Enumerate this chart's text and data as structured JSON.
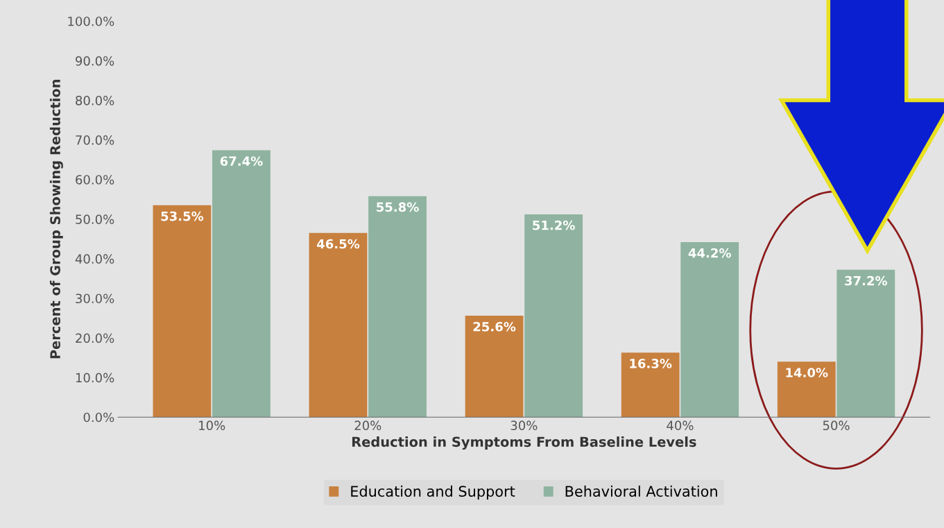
{
  "chart_data": {
    "type": "bar",
    "xlabel": "Reduction in Symptoms From Baseline Levels",
    "ylabel": "Percent of Group Showing Reduction",
    "categories": [
      "10%",
      "20%",
      "30%",
      "40%",
      "50%"
    ],
    "series": [
      {
        "name": "Education and Support",
        "color": "#c8803e",
        "values": [
          53.5,
          46.5,
          25.6,
          16.3,
          14.0
        ],
        "value_labels": [
          "53.5%",
          "46.5%",
          "25.6%",
          "16.3%",
          "14.0%"
        ]
      },
      {
        "name": "Behavioral Activation",
        "color": "#8fb3a0",
        "values": [
          67.4,
          55.8,
          51.2,
          44.2,
          37.2
        ],
        "value_labels": [
          "67.4%",
          "55.8%",
          "51.2%",
          "44.2%",
          "37.2%"
        ]
      }
    ],
    "ylim": [
      0,
      100
    ],
    "yticks": [
      {
        "value": 0,
        "label": "0.0%"
      },
      {
        "value": 10,
        "label": "10.0%"
      },
      {
        "value": 20,
        "label": "20.0%"
      },
      {
        "value": 30,
        "label": "30.0%"
      },
      {
        "value": 40,
        "label": "40.0%"
      },
      {
        "value": 50,
        "label": "50.0%"
      },
      {
        "value": 60,
        "label": "60.0%"
      },
      {
        "value": 70,
        "label": "70.0%"
      },
      {
        "value": 80,
        "label": "80.0%"
      },
      {
        "value": 90,
        "label": "90.0%"
      },
      {
        "value": 100,
        "label": "100.0%"
      }
    ],
    "grid": false,
    "legend": "bottom"
  }
}
